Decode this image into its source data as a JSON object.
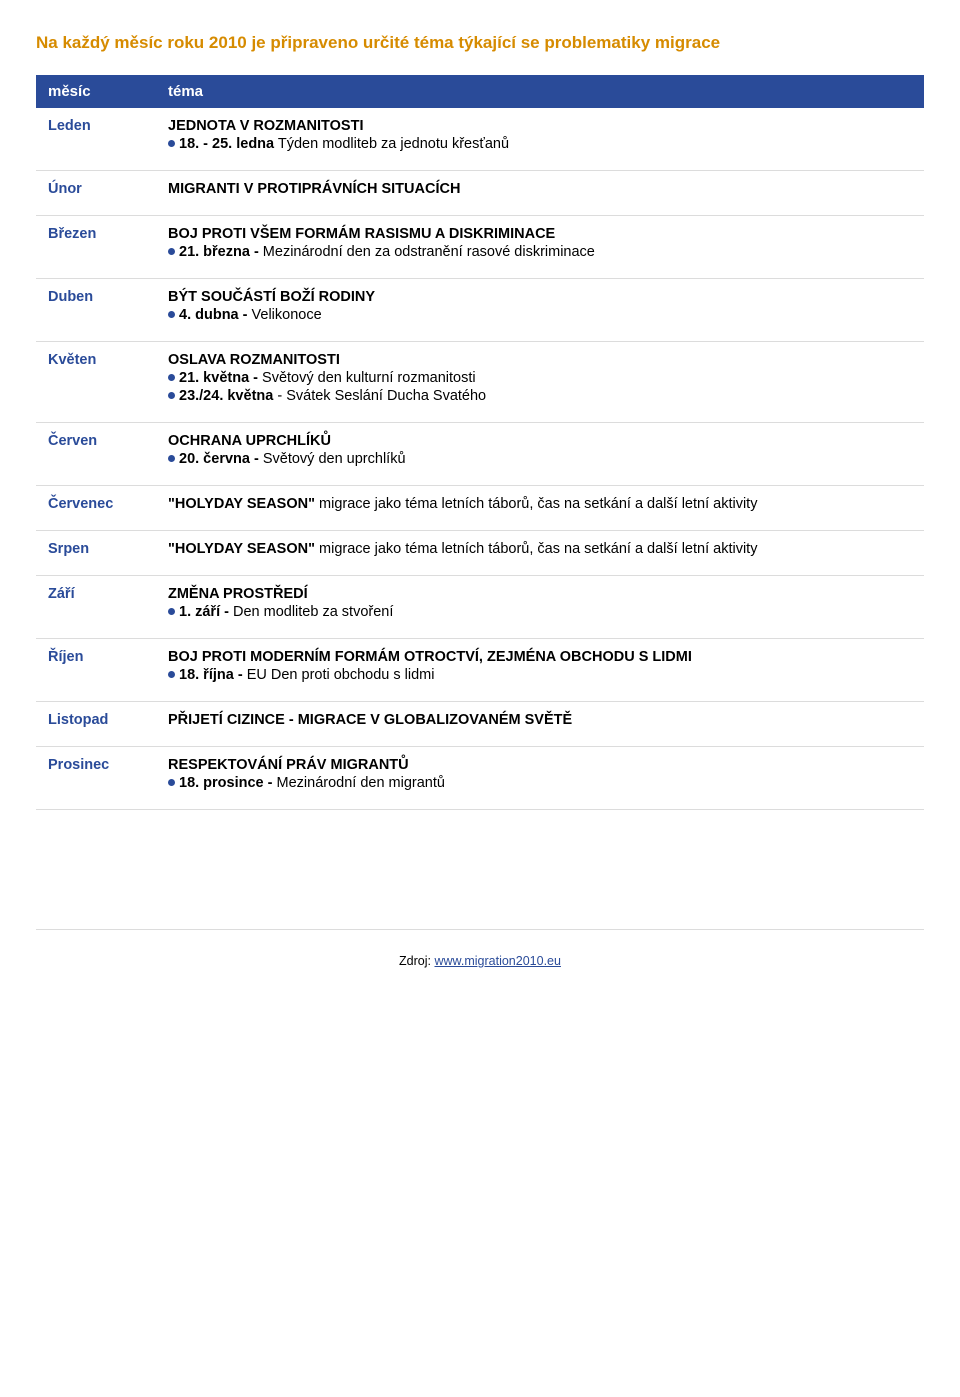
{
  "page": {
    "title": "Na každý měsíc roku 2010 je připraveno určité téma týkající se problematiky migrace"
  },
  "table": {
    "header_month": "měsíc",
    "header_theme": "téma"
  },
  "months": {
    "jan": {
      "label": "Leden",
      "title": "JEDNOTA V ROZMANITOSTI",
      "d1_date": "18. - 25. ledna",
      "d1_text": " Týden modliteb za jednotu křesťanů"
    },
    "feb": {
      "label": "Únor",
      "title": "MIGRANTI V PROTIPRÁVNÍCH SITUACÍCH"
    },
    "mar": {
      "label": "Březen",
      "title": "BOJ PROTI VŠEM FORMÁM RASISMU A DISKRIMINACE",
      "d1_date": "21. března -",
      "d1_text": " Mezinárodní den za odstranění rasové diskriminace"
    },
    "apr": {
      "label": "Duben",
      "title": "BÝT SOUČÁSTÍ BOŽÍ RODINY",
      "d1_date": "4. dubna -",
      "d1_text": " Velikonoce"
    },
    "may": {
      "label": "Květen",
      "title": "OSLAVA ROZMANITOSTI",
      "d1_date": "21. května -",
      "d1_text": " Světový den kulturní rozmanitosti",
      "d2_date": "23./24. května",
      "d2_text": " - Svátek Seslání Ducha Svatého"
    },
    "jun": {
      "label": "Červen",
      "title": "OCHRANA UPRCHLÍKŮ",
      "d1_date": "20. června -",
      "d1_text": " Světový den uprchlíků"
    },
    "jul": {
      "label": "Červenec",
      "text_a": "\"HOLYDAY SEASON\"",
      "text_b": " migrace jako téma letních táborů, čas na setkání a další letní aktivity"
    },
    "aug": {
      "label": "Srpen",
      "text_a": "\"HOLYDAY SEASON\"",
      "text_b": " migrace jako téma letních táborů, čas na setkání a další letní aktivity"
    },
    "sep": {
      "label": "Září",
      "title": "ZMĚNA PROSTŘEDÍ",
      "d1_date": "1. září -",
      "d1_text": " Den modliteb za stvoření"
    },
    "oct": {
      "label": "Říjen",
      "title": "BOJ PROTI MODERNÍM FORMÁM OTROCTVÍ, ZEJMÉNA OBCHODU S LIDMI",
      "d1_date": "18. října -",
      "d1_text": " EU Den proti obchodu s lidmi"
    },
    "nov": {
      "label": "Listopad",
      "title": "PŘIJETÍ CIZINCE - MIGRACE V GLOBALIZOVANÉM SVĚTĚ"
    },
    "dec": {
      "label": "Prosinec",
      "title": "RESPEKTOVÁNÍ PRÁV MIGRANTŮ",
      "d1_date": "18. prosince -",
      "d1_text": " Mezinárodní den migrantů"
    }
  },
  "source": {
    "prefix": "Zdroj: ",
    "link": "www.migration2010.eu"
  },
  "style": {
    "accent_color": "#d68b00",
    "brand_color": "#2a4b99",
    "border_color": "#dcdcdc",
    "background_color": "#ffffff",
    "font_family": "Verdana",
    "title_fontsize": 17,
    "body_fontsize": 14.5,
    "footer_fontsize": 12.5
  }
}
